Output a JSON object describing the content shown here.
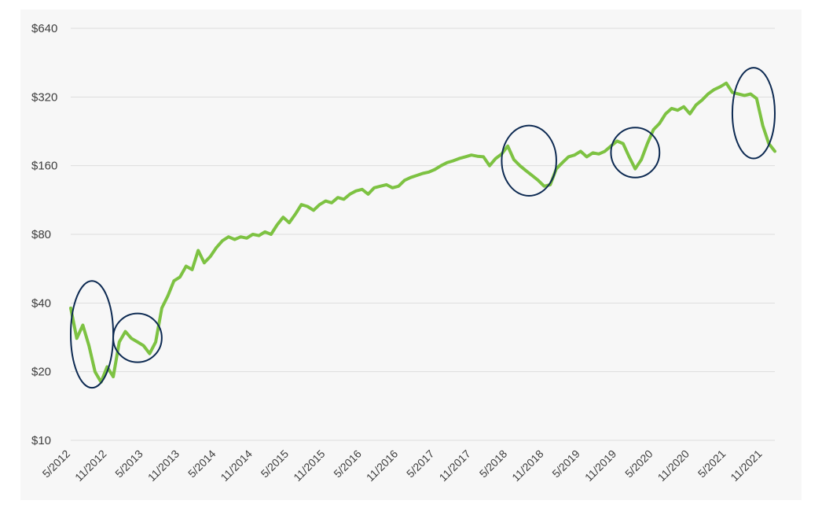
{
  "chart_data": {
    "type": "line",
    "title": "",
    "xlabel": "",
    "ylabel": "",
    "y_scale": "log2",
    "ylim": [
      10,
      640
    ],
    "y_ticks": [
      {
        "value": 10,
        "label": "$10"
      },
      {
        "value": 20,
        "label": "$20"
      },
      {
        "value": 40,
        "label": "$40"
      },
      {
        "value": 80,
        "label": "$80"
      },
      {
        "value": 160,
        "label": "$160"
      },
      {
        "value": 320,
        "label": "$320"
      },
      {
        "value": 640,
        "label": "$640"
      }
    ],
    "x_ticks": [
      "5/2012",
      "11/2012",
      "5/2013",
      "11/2013",
      "5/2014",
      "11/2014",
      "5/2015",
      "11/2015",
      "5/2016",
      "11/2016",
      "5/2017",
      "11/2017",
      "5/2018",
      "11/2018",
      "5/2019",
      "11/2019",
      "5/2020",
      "11/2020",
      "5/2021",
      "11/2021"
    ],
    "xlim": [
      "2012-05",
      "2022-01"
    ],
    "grid": "horizontal",
    "line_color": "#7dc242",
    "highlight_color": "#0d2a52",
    "series": [
      {
        "points": [
          [
            "2012-05",
            38
          ],
          [
            "2012-06",
            28
          ],
          [
            "2012-07",
            32
          ],
          [
            "2012-08",
            26
          ],
          [
            "2012-09",
            20
          ],
          [
            "2012-10",
            18
          ],
          [
            "2012-11",
            21
          ],
          [
            "2012-12",
            19
          ],
          [
            "2013-01",
            27
          ],
          [
            "2013-02",
            30
          ],
          [
            "2013-03",
            28
          ],
          [
            "2013-04",
            27
          ],
          [
            "2013-05",
            26
          ],
          [
            "2013-06",
            24
          ],
          [
            "2013-07",
            27
          ],
          [
            "2013-08",
            38
          ],
          [
            "2013-09",
            43
          ],
          [
            "2013-10",
            50
          ],
          [
            "2013-11",
            52
          ],
          [
            "2013-12",
            58
          ],
          [
            "2014-01",
            56
          ],
          [
            "2014-02",
            68
          ],
          [
            "2014-03",
            60
          ],
          [
            "2014-04",
            64
          ],
          [
            "2014-05",
            70
          ],
          [
            "2014-06",
            75
          ],
          [
            "2014-07",
            78
          ],
          [
            "2014-08",
            76
          ],
          [
            "2014-09",
            78
          ],
          [
            "2014-10",
            77
          ],
          [
            "2014-11",
            80
          ],
          [
            "2014-12",
            79
          ],
          [
            "2015-01",
            82
          ],
          [
            "2015-02",
            80
          ],
          [
            "2015-03",
            88
          ],
          [
            "2015-04",
            95
          ],
          [
            "2015-05",
            90
          ],
          [
            "2015-06",
            98
          ],
          [
            "2015-07",
            108
          ],
          [
            "2015-08",
            106
          ],
          [
            "2015-09",
            102
          ],
          [
            "2015-10",
            108
          ],
          [
            "2015-11",
            112
          ],
          [
            "2015-12",
            110
          ],
          [
            "2016-01",
            116
          ],
          [
            "2016-02",
            114
          ],
          [
            "2016-03",
            120
          ],
          [
            "2016-04",
            124
          ],
          [
            "2016-05",
            126
          ],
          [
            "2016-06",
            120
          ],
          [
            "2016-07",
            128
          ],
          [
            "2016-08",
            130
          ],
          [
            "2016-09",
            132
          ],
          [
            "2016-10",
            128
          ],
          [
            "2016-11",
            130
          ],
          [
            "2016-12",
            138
          ],
          [
            "2017-01",
            142
          ],
          [
            "2017-02",
            145
          ],
          [
            "2017-03",
            148
          ],
          [
            "2017-04",
            150
          ],
          [
            "2017-05",
            154
          ],
          [
            "2017-06",
            160
          ],
          [
            "2017-07",
            165
          ],
          [
            "2017-08",
            168
          ],
          [
            "2017-09",
            172
          ],
          [
            "2017-10",
            175
          ],
          [
            "2017-11",
            178
          ],
          [
            "2017-12",
            176
          ],
          [
            "2018-01",
            175
          ],
          [
            "2018-02",
            160
          ],
          [
            "2018-03",
            172
          ],
          [
            "2018-04",
            180
          ],
          [
            "2018-05",
            195
          ],
          [
            "2018-06",
            170
          ],
          [
            "2018-07",
            160
          ],
          [
            "2018-08",
            152
          ],
          [
            "2018-09",
            145
          ],
          [
            "2018-10",
            138
          ],
          [
            "2018-11",
            130
          ],
          [
            "2018-12",
            132
          ],
          [
            "2019-01",
            155
          ],
          [
            "2019-02",
            165
          ],
          [
            "2019-03",
            175
          ],
          [
            "2019-04",
            178
          ],
          [
            "2019-05",
            185
          ],
          [
            "2019-06",
            175
          ],
          [
            "2019-07",
            182
          ],
          [
            "2019-08",
            180
          ],
          [
            "2019-09",
            185
          ],
          [
            "2019-10",
            195
          ],
          [
            "2019-11",
            205
          ],
          [
            "2019-12",
            200
          ],
          [
            "2020-01",
            175
          ],
          [
            "2020-02",
            155
          ],
          [
            "2020-03",
            170
          ],
          [
            "2020-04",
            200
          ],
          [
            "2020-05",
            230
          ],
          [
            "2020-06",
            245
          ],
          [
            "2020-07",
            270
          ],
          [
            "2020-08",
            285
          ],
          [
            "2020-09",
            280
          ],
          [
            "2020-10",
            290
          ],
          [
            "2020-11",
            270
          ],
          [
            "2020-12",
            295
          ],
          [
            "2021-01",
            310
          ],
          [
            "2021-02",
            330
          ],
          [
            "2021-03",
            345
          ],
          [
            "2021-04",
            355
          ],
          [
            "2021-05",
            368
          ],
          [
            "2021-06",
            335
          ],
          [
            "2021-07",
            330
          ],
          [
            "2021-08",
            325
          ],
          [
            "2021-09",
            330
          ],
          [
            "2021-10",
            315
          ],
          [
            "2021-11",
            240
          ],
          [
            "2021-12",
            200
          ],
          [
            "2022-01",
            185
          ]
        ]
      }
    ],
    "highlights": [
      {
        "from": "2012-05",
        "to": "2012-12",
        "ymin": 17,
        "ymax": 50
      },
      {
        "from": "2012-12",
        "to": "2013-08",
        "ymin": 22,
        "ymax": 36
      },
      {
        "from": "2018-04",
        "to": "2019-01",
        "ymin": 118,
        "ymax": 240
      },
      {
        "from": "2019-10",
        "to": "2020-06",
        "ymin": 142,
        "ymax": 235
      },
      {
        "from": "2021-06",
        "to": "2022-01",
        "ymin": 172,
        "ymax": 430
      }
    ]
  }
}
